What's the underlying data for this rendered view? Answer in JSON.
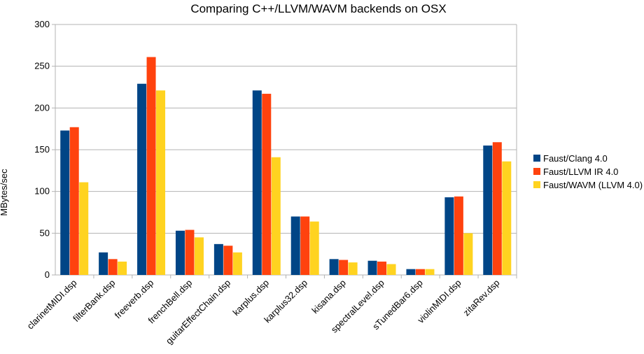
{
  "chart_data": {
    "type": "bar",
    "title": "Comparing C++/LLVM/WAVM backends on OSX",
    "xlabel": "",
    "ylabel": "MBytes/sec",
    "ylim": [
      0,
      300
    ],
    "yticks": [
      0,
      50,
      100,
      150,
      200,
      250,
      300
    ],
    "grid": true,
    "legend_position": "right",
    "categories": [
      "clarinetMIDI.dsp",
      "filterBank.dsp",
      "freeverb.dsp",
      "frenchBell.dsp",
      "guitarEffectChain.dsp",
      "karplus.dsp",
      "karplus32.dsp",
      "kisana.dsp",
      "spectralLevel.dsp",
      "sTunedBar6.dsp",
      "violinMIDI.dsp",
      "zitaRev.dsp"
    ],
    "series": [
      {
        "name": "Faust/Clang 4.0",
        "color": "#004586",
        "values": [
          173,
          27,
          229,
          53,
          37,
          221,
          70,
          19,
          17,
          7,
          93,
          155
        ]
      },
      {
        "name": "Faust/LLVM IR 4.0",
        "color": "#ff420e",
        "values": [
          177,
          19,
          261,
          54,
          35,
          217,
          70,
          18,
          16,
          7,
          94,
          159
        ]
      },
      {
        "name": "Faust/WAVM (LLVM 4.0)",
        "color": "#ffd320",
        "values": [
          111,
          16,
          221,
          45,
          27,
          141,
          64,
          15,
          13,
          7,
          50,
          136
        ]
      }
    ]
  }
}
